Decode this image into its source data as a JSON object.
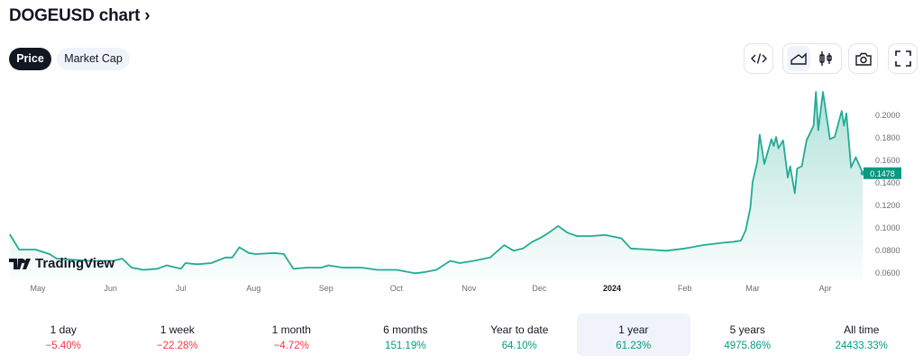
{
  "header": {
    "title": "DOGEUSD chart ›"
  },
  "tabs": [
    {
      "label": "Price",
      "active": true
    },
    {
      "label": "Market Cap",
      "active": false
    }
  ],
  "toolbar": {
    "icons": [
      "embed-code-icon",
      "area-chart-icon",
      "candlestick-icon",
      "camera-icon",
      "fullscreen-icon"
    ],
    "active": "area-chart-icon"
  },
  "watermark": "TradingView",
  "colors": {
    "line": "#22ab94",
    "label_bg": "#089981",
    "negative": "#f23645",
    "positive": "#089981"
  },
  "chart_data": {
    "type": "area",
    "symbol": "DOGEUSD",
    "last_value_label": "0.1478",
    "ylim": [
      0.06,
      0.21
    ],
    "y_ticks": [
      "0.2000",
      "0.1800",
      "0.1600",
      "0.1400",
      "0.1200",
      "0.1000",
      "0.0800",
      "0.0600"
    ],
    "x_ticks": [
      {
        "label": "May",
        "date": "2023-05-01"
      },
      {
        "label": "Jun",
        "date": "2023-06-01"
      },
      {
        "label": "Jul",
        "date": "2023-07-01"
      },
      {
        "label": "Aug",
        "date": "2023-08-01"
      },
      {
        "label": "Sep",
        "date": "2023-09-01"
      },
      {
        "label": "Oct",
        "date": "2023-10-01"
      },
      {
        "label": "Nov",
        "date": "2023-11-01"
      },
      {
        "label": "Dec",
        "date": "2023-12-01"
      },
      {
        "label": "2024",
        "date": "2024-01-01",
        "bold": true
      },
      {
        "label": "Feb",
        "date": "2024-02-01"
      },
      {
        "label": "Mar",
        "date": "2024-03-01"
      },
      {
        "label": "Apr",
        "date": "2024-04-01"
      }
    ],
    "points": [
      [
        "2023-04-19",
        0.0936
      ],
      [
        "2023-04-23",
        0.08
      ],
      [
        "2023-04-30",
        0.08
      ],
      [
        "2023-05-06",
        0.076
      ],
      [
        "2023-05-09",
        0.072
      ],
      [
        "2023-05-16",
        0.071
      ],
      [
        "2023-05-23",
        0.07
      ],
      [
        "2023-06-02",
        0.07
      ],
      [
        "2023-06-06",
        0.072
      ],
      [
        "2023-06-10",
        0.064
      ],
      [
        "2023-06-15",
        0.062
      ],
      [
        "2023-06-21",
        0.063
      ],
      [
        "2023-06-25",
        0.066
      ],
      [
        "2023-07-01",
        0.063
      ],
      [
        "2023-07-03",
        0.068
      ],
      [
        "2023-07-08",
        0.067
      ],
      [
        "2023-07-14",
        0.068
      ],
      [
        "2023-07-20",
        0.073
      ],
      [
        "2023-07-23",
        0.073
      ],
      [
        "2023-07-26",
        0.082
      ],
      [
        "2023-07-30",
        0.077
      ],
      [
        "2023-08-02",
        0.076
      ],
      [
        "2023-08-10",
        0.077
      ],
      [
        "2023-08-14",
        0.076
      ],
      [
        "2023-08-18",
        0.063
      ],
      [
        "2023-08-24",
        0.064
      ],
      [
        "2023-08-30",
        0.064
      ],
      [
        "2023-09-02",
        0.066
      ],
      [
        "2023-09-08",
        0.064
      ],
      [
        "2023-09-16",
        0.064
      ],
      [
        "2023-09-23",
        0.062
      ],
      [
        "2023-10-01",
        0.062
      ],
      [
        "2023-10-09",
        0.059
      ],
      [
        "2023-10-13",
        0.06
      ],
      [
        "2023-10-18",
        0.062
      ],
      [
        "2023-10-24",
        0.07
      ],
      [
        "2023-10-28",
        0.068
      ],
      [
        "2023-11-03",
        0.07
      ],
      [
        "2023-11-10",
        0.073
      ],
      [
        "2023-11-16",
        0.084
      ],
      [
        "2023-11-20",
        0.079
      ],
      [
        "2023-11-24",
        0.081
      ],
      [
        "2023-11-28",
        0.087
      ],
      [
        "2023-12-02",
        0.091
      ],
      [
        "2023-12-05",
        0.095
      ],
      [
        "2023-12-09",
        0.101
      ],
      [
        "2023-12-13",
        0.095
      ],
      [
        "2023-12-17",
        0.092
      ],
      [
        "2023-12-23",
        0.092
      ],
      [
        "2023-12-29",
        0.093
      ],
      [
        "2024-01-05",
        0.09
      ],
      [
        "2024-01-09",
        0.081
      ],
      [
        "2024-01-17",
        0.08
      ],
      [
        "2024-01-24",
        0.079
      ],
      [
        "2024-02-01",
        0.081
      ],
      [
        "2024-02-09",
        0.084
      ],
      [
        "2024-02-17",
        0.086
      ],
      [
        "2024-02-22",
        0.087
      ],
      [
        "2024-02-25",
        0.088
      ],
      [
        "2024-02-27",
        0.097
      ],
      [
        "2024-02-29",
        0.117
      ],
      [
        "2024-03-01",
        0.14
      ],
      [
        "2024-03-03",
        0.158
      ],
      [
        "2024-03-04",
        0.182
      ],
      [
        "2024-03-06",
        0.156
      ],
      [
        "2024-03-09",
        0.178
      ],
      [
        "2024-03-10",
        0.172
      ],
      [
        "2024-03-11",
        0.18
      ],
      [
        "2024-03-12",
        0.17
      ],
      [
        "2024-03-14",
        0.177
      ],
      [
        "2024-03-16",
        0.144
      ],
      [
        "2024-03-17",
        0.154
      ],
      [
        "2024-03-19",
        0.13
      ],
      [
        "2024-03-20",
        0.152
      ],
      [
        "2024-03-22",
        0.154
      ],
      [
        "2024-03-24",
        0.177
      ],
      [
        "2024-03-27",
        0.19
      ],
      [
        "2024-03-28",
        0.22
      ],
      [
        "2024-03-29",
        0.186
      ],
      [
        "2024-03-31",
        0.22
      ],
      [
        "2024-04-03",
        0.178
      ],
      [
        "2024-04-05",
        0.18
      ],
      [
        "2024-04-08",
        0.203
      ],
      [
        "2024-04-09",
        0.19
      ],
      [
        "2024-04-10",
        0.201
      ],
      [
        "2024-04-12",
        0.153
      ],
      [
        "2024-04-14",
        0.162
      ],
      [
        "2024-04-17",
        0.1478
      ]
    ]
  },
  "performance": [
    {
      "label": "1 day",
      "value": "−5.40%",
      "trend": "neg"
    },
    {
      "label": "1 week",
      "value": "−22.28%",
      "trend": "neg"
    },
    {
      "label": "1 month",
      "value": "−4.72%",
      "trend": "neg"
    },
    {
      "label": "6 months",
      "value": "151.19%",
      "trend": "pos"
    },
    {
      "label": "Year to date",
      "value": "64.10%",
      "trend": "pos"
    },
    {
      "label": "1 year",
      "value": "61.23%",
      "trend": "pos",
      "active": true
    },
    {
      "label": "5 years",
      "value": "4975.86%",
      "trend": "pos"
    },
    {
      "label": "All time",
      "value": "24433.33%",
      "trend": "pos"
    }
  ]
}
